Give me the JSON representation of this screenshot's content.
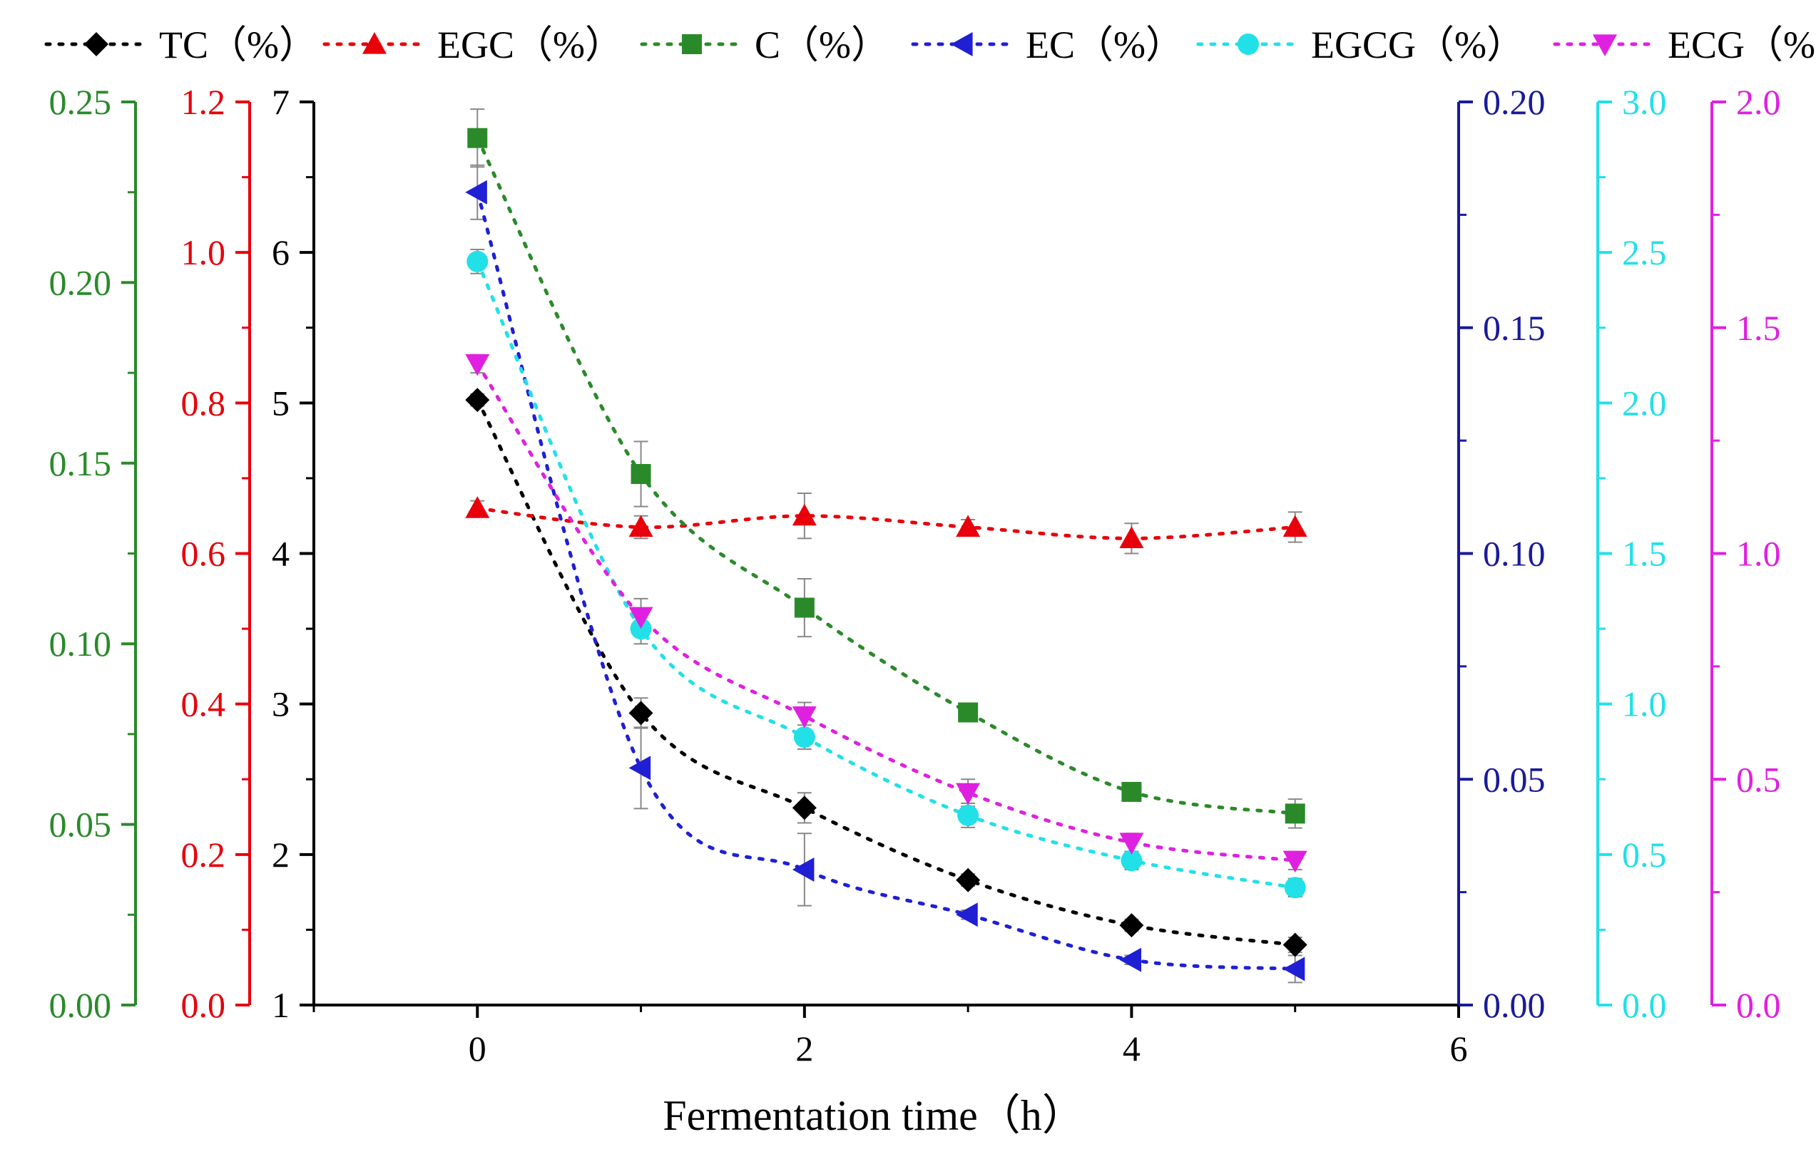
{
  "chart_data": {
    "type": "line",
    "xlabel": "Fermentation time（h）",
    "xlim": [
      -1,
      6
    ],
    "xticks": [
      0,
      2,
      4,
      6
    ],
    "x": [
      0,
      1,
      2,
      3,
      4,
      5
    ],
    "series": [
      {
        "key": "TC",
        "name": "TC（%）",
        "color": "#000000",
        "marker": "diamond",
        "axis": "left1",
        "values": [
          5.02,
          2.94,
          2.31,
          1.83,
          1.53,
          1.4
        ],
        "errors": [
          0.04,
          0.1,
          0.1,
          0.04,
          0.04,
          0.05
        ]
      },
      {
        "key": "EGC",
        "name": "EGC（%）",
        "color": "#e8000b",
        "marker": "triangle-up",
        "axis": "left2",
        "values": [
          0.66,
          0.635,
          0.65,
          0.635,
          0.62,
          0.635
        ],
        "errors": [
          0.01,
          0.015,
          0.03,
          0.01,
          0.02,
          0.02
        ]
      },
      {
        "key": "C",
        "name": "C（%）",
        "color": "#2a8a2a",
        "marker": "square",
        "axis": "left3",
        "values": [
          0.24,
          0.147,
          0.11,
          0.081,
          0.059,
          0.053
        ],
        "errors": [
          0.008,
          0.009,
          0.008,
          0.002,
          0.002,
          0.004
        ]
      },
      {
        "key": "EC",
        "name": "EC（%）",
        "color": "#1f1fd4",
        "marker": "triangle-left",
        "axis": "right1",
        "values": [
          0.18,
          0.0525,
          0.03,
          0.02,
          0.01,
          0.008
        ],
        "errors": [
          0.006,
          0.009,
          0.008,
          0.001,
          0.001,
          0.003
        ]
      },
      {
        "key": "EGCG",
        "name": "EGCG（%）",
        "color": "#22e0e8",
        "marker": "circle",
        "axis": "right2",
        "values": [
          2.47,
          1.25,
          0.89,
          0.63,
          0.48,
          0.39
        ],
        "errors": [
          0.04,
          0.05,
          0.04,
          0.04,
          0.03,
          0.03
        ]
      },
      {
        "key": "ECG",
        "name": "ECG（%）",
        "color": "#e020e0",
        "marker": "triangle-down",
        "axis": "right3",
        "values": [
          1.42,
          0.86,
          0.64,
          0.47,
          0.36,
          0.32
        ],
        "errors": [
          0.02,
          0.04,
          0.03,
          0.03,
          0.02,
          0.02
        ]
      }
    ],
    "axes": [
      {
        "id": "left1",
        "side": "left",
        "color": "#000000",
        "min": 1,
        "max": 7,
        "ticks": [
          "1",
          "2",
          "3",
          "4",
          "5",
          "6",
          "7"
        ],
        "tick_values": [
          1,
          2,
          3,
          4,
          5,
          6,
          7
        ]
      },
      {
        "id": "left2",
        "side": "left",
        "color": "#e8000b",
        "min": 0,
        "max": 1.2,
        "ticks": [
          "0.0",
          "0.2",
          "0.4",
          "0.6",
          "0.8",
          "1.0",
          "1.2"
        ],
        "tick_values": [
          0,
          0.2,
          0.4,
          0.6,
          0.8,
          1.0,
          1.2
        ]
      },
      {
        "id": "left3",
        "side": "left",
        "color": "#2a8a2a",
        "min": 0,
        "max": 0.25,
        "ticks": [
          "0.00",
          "0.05",
          "0.10",
          "0.15",
          "0.20",
          "0.25"
        ],
        "tick_values": [
          0,
          0.05,
          0.1,
          0.15,
          0.2,
          0.25
        ]
      },
      {
        "id": "right1",
        "side": "right",
        "color": "#1a1a99",
        "min": 0,
        "max": 0.2,
        "ticks": [
          "0.00",
          "0.05",
          "0.10",
          "0.15",
          "0.20"
        ],
        "tick_values": [
          0,
          0.05,
          0.1,
          0.15,
          0.2
        ]
      },
      {
        "id": "right2",
        "side": "right",
        "color": "#22e0e8",
        "min": 0,
        "max": 3.0,
        "ticks": [
          "0.0",
          "0.5",
          "1.0",
          "1.5",
          "2.0",
          "2.5",
          "3.0"
        ],
        "tick_values": [
          0,
          0.5,
          1.0,
          1.5,
          2.0,
          2.5,
          3.0
        ]
      },
      {
        "id": "right3",
        "side": "right",
        "color": "#e020e0",
        "min": 0,
        "max": 2.0,
        "ticks": [
          "0.0",
          "0.5",
          "1.0",
          "1.5",
          "2.0"
        ],
        "tick_values": [
          0,
          0.5,
          1.0,
          1.5,
          2.0
        ]
      }
    ]
  }
}
